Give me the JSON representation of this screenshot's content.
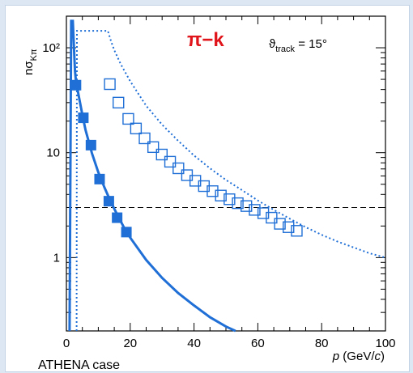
{
  "chart_data": {
    "type": "scatter",
    "title": "π−k",
    "annotation": "ϑ_track = 15°",
    "ylabel": "nσ_Kπ",
    "xlabel": "p (GeV/c)",
    "xlim": [
      0,
      100
    ],
    "ylim": [
      0.2,
      200
    ],
    "yscale": "log",
    "x_ticks": [
      0,
      20,
      40,
      60,
      80,
      100
    ],
    "y_ticks": [
      {
        "value": 1,
        "label": "1"
      },
      {
        "value": 10,
        "label": "10"
      },
      {
        "value": 100,
        "label": "10²"
      }
    ],
    "threshold_line": {
      "y": 3,
      "style": "dashed"
    },
    "colors": {
      "series": "#1f6fd6",
      "title": "#e0151b"
    },
    "series": [
      {
        "marker": "filled-square",
        "x": [
          3,
          5.3,
          7.7,
          10.4,
          13.3,
          15.9,
          18.8
        ],
        "y": [
          44,
          21.5,
          11.8,
          5.6,
          3.45,
          2.4,
          1.75
        ]
      },
      {
        "marker": "open-square",
        "x": [
          13.6,
          16.3,
          19.4,
          21.8,
          24.5,
          27.2,
          29.9,
          32.5,
          35.1,
          37.8,
          40.4,
          43.1,
          45.8,
          48.4,
          51.1,
          53.7,
          56.4,
          59.0,
          61.7,
          64.3,
          66.9,
          69.6,
          72.2
        ],
        "y": [
          45,
          30,
          21,
          17,
          13.7,
          11.3,
          9.6,
          8.2,
          7.1,
          6.1,
          5.4,
          4.8,
          4.3,
          3.9,
          3.6,
          3.3,
          3.1,
          2.85,
          2.65,
          2.4,
          2.1,
          1.95,
          1.8
        ]
      },
      {
        "style": "solid-curve",
        "x": [
          1,
          1.5,
          2,
          2.7,
          3,
          4,
          5,
          6,
          8,
          10,
          12,
          14,
          16,
          18,
          20,
          25,
          30,
          35,
          40,
          45,
          50,
          53
        ],
        "y": [
          0.2,
          180,
          180,
          60,
          48,
          33,
          23,
          16.5,
          9.9,
          6.5,
          4.6,
          3.35,
          2.55,
          1.95,
          1.55,
          0.95,
          0.64,
          0.46,
          0.35,
          0.27,
          0.22,
          0.2
        ]
      },
      {
        "style": "dotted-curve",
        "x": [
          3.2,
          3.3,
          4,
          5,
          7,
          9,
          12,
          13,
          14,
          15,
          17,
          20,
          25,
          30,
          35,
          40,
          45,
          50,
          55,
          60,
          65,
          70,
          75,
          80,
          85,
          90,
          95,
          100
        ],
        "y": [
          0.2,
          145,
          145,
          145,
          145,
          145,
          145,
          145,
          115,
          95,
          70,
          48,
          28,
          18.5,
          13,
          9.4,
          7.1,
          5.5,
          4.4,
          3.5,
          2.85,
          2.35,
          1.95,
          1.65,
          1.42,
          1.25,
          1.1,
          1.0
        ]
      }
    ]
  },
  "axis_text": {
    "ylabel_main": "nσ",
    "ylabel_sub": "Kπ",
    "xlabel_p": "p",
    "xlabel_rest": " (GeV/",
    "xlabel_c": "c",
    "xlabel_close": ")",
    "annot_main": "ϑ",
    "annot_sub": "track",
    "annot_rest": " = 15°"
  },
  "footer": {
    "text": "ATHENA case"
  }
}
